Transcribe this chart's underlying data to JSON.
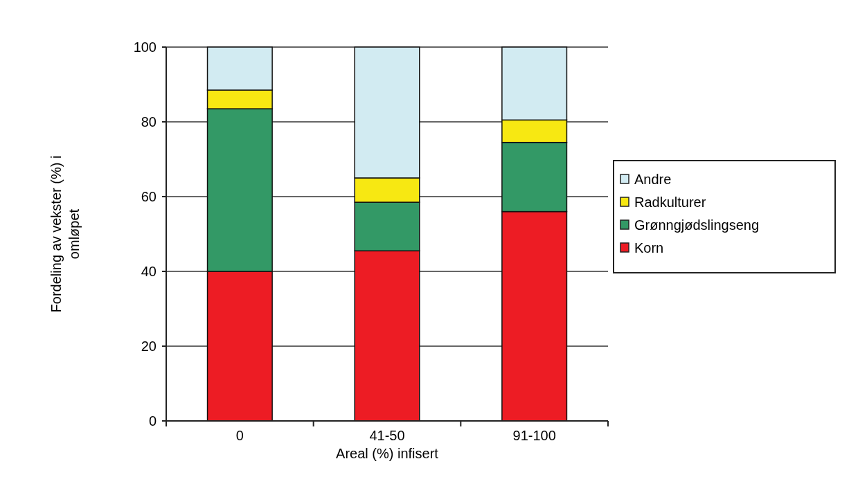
{
  "chart_data": {
    "type": "bar",
    "stacked": true,
    "xlabel": "Areal (%) infisert",
    "ylabel": "Fordeling av vekster (%) i omløpet",
    "categories": [
      "0",
      "41-50",
      "91-100"
    ],
    "series": [
      {
        "name": "Korn",
        "color": "#ed1c24",
        "values": [
          40,
          45.5,
          56
        ]
      },
      {
        "name": "Grønngjødslingseng",
        "color": "#339966",
        "values": [
          43.5,
          13,
          18.5
        ]
      },
      {
        "name": "Radkulturer",
        "color": "#f7e812",
        "values": [
          5,
          6.5,
          6
        ]
      },
      {
        "name": "Andre",
        "color": "#d2ebf2",
        "values": [
          11.5,
          35,
          19.5
        ]
      }
    ],
    "ylim": [
      0,
      100
    ],
    "yticks": [
      0,
      20,
      40,
      60,
      80,
      100
    ],
    "grid": "y",
    "legend": "right"
  }
}
